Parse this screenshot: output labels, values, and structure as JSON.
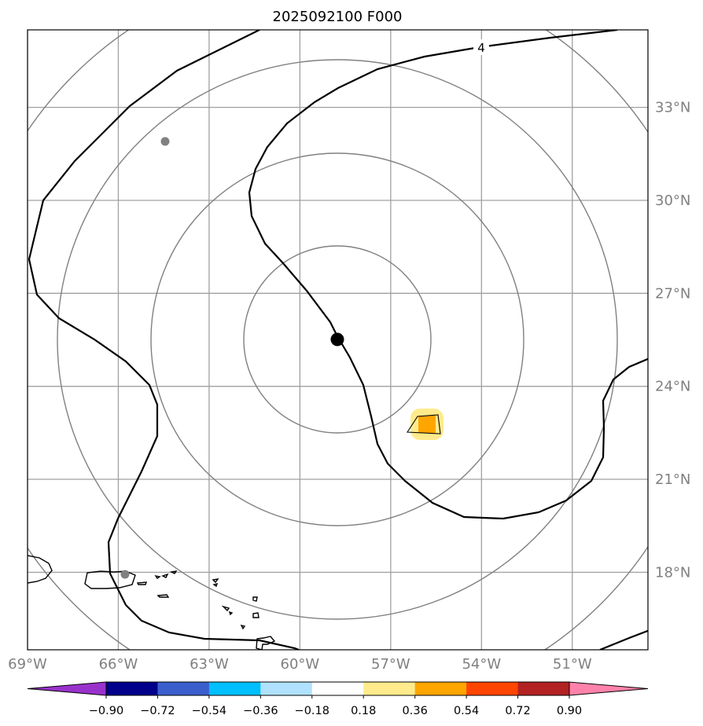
{
  "title": "2025092100 F000",
  "map": {
    "lon_range": [
      -69,
      -48.5
    ],
    "lat_range": [
      15.5,
      35.5
    ],
    "lon_ticks": [
      {
        "value": -69,
        "label": "69°W"
      },
      {
        "value": -66,
        "label": "66°W"
      },
      {
        "value": -63,
        "label": "63°W"
      },
      {
        "value": -60,
        "label": "60°W"
      },
      {
        "value": -57,
        "label": "57°W"
      },
      {
        "value": -54,
        "label": "54°W"
      },
      {
        "value": -51,
        "label": "51°W"
      }
    ],
    "lat_ticks": [
      {
        "value": 18,
        "label": "18°N"
      },
      {
        "value": 21,
        "label": "21°N"
      },
      {
        "value": 24,
        "label": "24°N"
      },
      {
        "value": 27,
        "label": "27°N"
      },
      {
        "value": 30,
        "label": "30°N"
      },
      {
        "value": 33,
        "label": "33°N"
      }
    ],
    "storm_center": {
      "lon": -59.0,
      "lat": 26.0
    },
    "range_rings": [
      "inner-ring",
      "ring-2",
      "ring-3",
      "ring-4"
    ],
    "contour_label": "4",
    "gray_markers": [
      {
        "name": "marker-bermuda",
        "lon": -64.6,
        "lat": 32.3
      },
      {
        "name": "marker-puerto-rico",
        "lon": -66.0,
        "lat": 18.4
      }
    ],
    "anomaly_patch": {
      "lon": -56.3,
      "lat": 23.2,
      "inner_color": "#ffa500",
      "outer_color": "#ffeb8c"
    }
  },
  "colorbar": {
    "colors": [
      "#9932cc",
      "#00008b",
      "#3a5fcd",
      "#00bfff",
      "#b0e2ff",
      "#ffffff",
      "#ffeb8c",
      "#ffa500",
      "#ff4500",
      "#b22222",
      "#ff82ab"
    ],
    "labels": [
      "−0.90",
      "−0.72",
      "−0.54",
      "−0.36",
      "−0.18",
      "0.18",
      "0.36",
      "0.54",
      "0.72",
      "0.90"
    ]
  }
}
